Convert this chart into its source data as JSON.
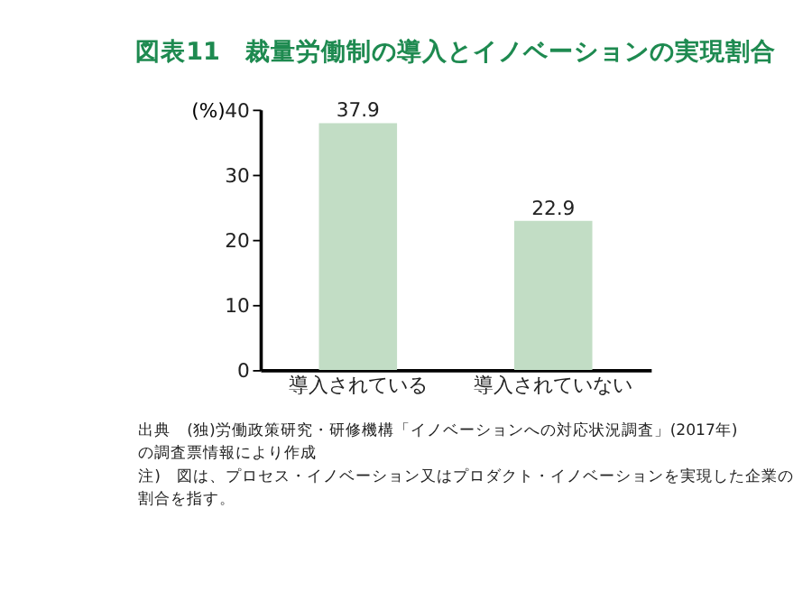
{
  "chart_data": {
    "type": "bar",
    "title": "図表11　裁量労働制の導入とイノベーションの実現割合",
    "ylabel": "(%)",
    "categories": [
      "導入されている",
      "導入されていない"
    ],
    "series": [
      {
        "color": "#c2ddc5",
        "values": [
          37.9,
          22.9
        ]
      }
    ],
    "ylim": [
      0,
      40
    ],
    "yticks": [
      0,
      10,
      20,
      30,
      40
    ],
    "grid": false,
    "data_labels": true,
    "annotations": [
      "出典　(独)労働政策研究・研修機構「イノベーションへの対応状況調査」(2017年)の調査票情報により作成",
      "注)　図は、プロセス・イノベーション又はプロダクト・イノベーションを実現した企業の割合を指す。"
    ]
  }
}
